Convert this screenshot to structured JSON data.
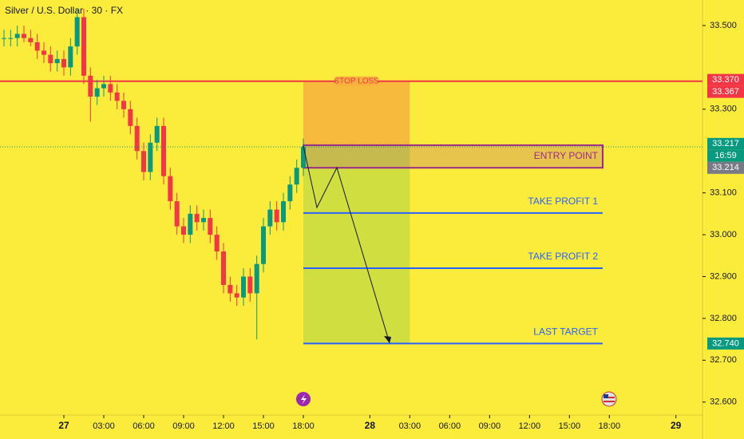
{
  "chart_data": {
    "type": "candlestick",
    "title": "Silver / U.S. Dollar · 30 · FX",
    "background": "#fbec3c",
    "up_color": "#089981",
    "down_color": "#f23645",
    "x": [
      -4.5,
      -4,
      -3.5,
      -3,
      -2.5,
      -2,
      -1.5,
      -1,
      -0.5,
      0,
      0.5,
      1,
      1.5,
      2,
      2.5,
      3,
      3.5,
      4,
      4.5,
      5,
      5.5,
      6,
      6.5,
      7,
      7.5,
      8,
      8.5,
      9,
      9.5,
      10,
      10.5,
      11,
      11.5,
      12,
      12.5,
      13,
      13.5,
      14,
      14.5,
      15,
      15.5,
      16,
      16.5,
      17,
      17.5,
      18
    ],
    "open": [
      33.47,
      33.47,
      33.47,
      33.48,
      33.47,
      33.46,
      33.44,
      33.43,
      33.41,
      33.42,
      33.4,
      33.45,
      33.52,
      33.38,
      33.33,
      33.35,
      33.36,
      33.34,
      33.32,
      33.3,
      33.26,
      33.2,
      33.15,
      33.22,
      33.26,
      33.14,
      33.08,
      33.02,
      33.0,
      33.05,
      33.03,
      33.04,
      33.0,
      32.96,
      32.88,
      32.86,
      32.85,
      32.9,
      32.86,
      32.93,
      33.02,
      33.06,
      33.03,
      33.08,
      33.12,
      33.16
    ],
    "high": [
      33.49,
      33.49,
      33.5,
      33.5,
      33.49,
      33.48,
      33.46,
      33.45,
      33.44,
      33.44,
      33.47,
      33.54,
      33.54,
      33.4,
      33.37,
      33.38,
      33.38,
      33.36,
      33.34,
      33.32,
      33.28,
      33.22,
      33.24,
      33.28,
      33.28,
      33.16,
      33.1,
      33.04,
      33.07,
      33.07,
      33.06,
      33.06,
      33.02,
      32.98,
      32.9,
      32.88,
      32.92,
      32.92,
      32.95,
      33.04,
      33.08,
      33.08,
      33.1,
      33.14,
      33.18,
      33.23
    ],
    "low": [
      33.45,
      33.45,
      33.45,
      33.46,
      33.45,
      33.42,
      33.41,
      33.39,
      33.39,
      33.38,
      33.38,
      33.43,
      33.36,
      33.27,
      33.31,
      33.33,
      33.32,
      33.3,
      33.28,
      33.24,
      33.18,
      33.13,
      33.13,
      33.2,
      33.12,
      33.06,
      33.0,
      32.98,
      32.98,
      33.01,
      33.01,
      32.98,
      32.94,
      32.86,
      32.84,
      32.83,
      32.83,
      32.84,
      32.75,
      32.91,
      33.0,
      33.01,
      33.01,
      33.06,
      33.1,
      33.14
    ],
    "close": [
      33.47,
      33.47,
      33.48,
      33.47,
      33.46,
      33.44,
      33.43,
      33.41,
      33.42,
      33.4,
      33.45,
      33.52,
      33.38,
      33.33,
      33.35,
      33.36,
      33.34,
      33.32,
      33.3,
      33.26,
      33.2,
      33.15,
      33.22,
      33.26,
      33.14,
      33.08,
      33.02,
      33.0,
      33.05,
      33.03,
      33.04,
      33.0,
      32.96,
      32.88,
      32.86,
      32.85,
      32.9,
      32.86,
      32.93,
      33.02,
      33.06,
      33.03,
      33.08,
      33.12,
      33.16,
      33.21
    ],
    "xlim": [
      -4.8,
      48
    ],
    "xticks": [
      {
        "value": 0,
        "label": "27"
      },
      {
        "value": 3,
        "label": "03:00"
      },
      {
        "value": 6,
        "label": "06:00"
      },
      {
        "value": 9,
        "label": "09:00"
      },
      {
        "value": 12,
        "label": "12:00"
      },
      {
        "value": 15,
        "label": "15:00"
      },
      {
        "value": 18,
        "label": "18:00"
      },
      {
        "value": 23,
        "label": "28"
      },
      {
        "value": 26,
        "label": "03:00"
      },
      {
        "value": 29,
        "label": "06:00"
      },
      {
        "value": 32,
        "label": "09:00"
      },
      {
        "value": 35,
        "label": "12:00"
      },
      {
        "value": 38,
        "label": "15:00"
      },
      {
        "value": 41,
        "label": "18:00"
      },
      {
        "value": 46,
        "label": "29"
      }
    ],
    "ylim": [
      32.569,
      33.561
    ],
    "yticks": [
      {
        "value": 33.5,
        "label": "33.500"
      },
      {
        "value": 33.3,
        "label": "33.300"
      },
      {
        "value": 33.1,
        "label": "33.100"
      },
      {
        "value": 33.0,
        "label": "33.000"
      },
      {
        "value": 32.9,
        "label": "32.900"
      },
      {
        "value": 32.8,
        "label": "32.800"
      },
      {
        "value": 32.7,
        "label": "32.700"
      },
      {
        "value": 32.6,
        "label": "32.600"
      }
    ],
    "stop_loss": {
      "label": "STOP LOSS",
      "value": 33.367,
      "color": "#f23645"
    },
    "risk_zone": {
      "x": [
        18,
        26
      ],
      "range": [
        33.214,
        33.367
      ],
      "color": "#f7b13c"
    },
    "reward_zone": {
      "x": [
        18,
        26
      ],
      "range": [
        32.74,
        33.214
      ],
      "color": "#c9dc3f"
    },
    "entry": {
      "label": "ENTRY POINT",
      "x": [
        18,
        40.5
      ],
      "range": [
        33.16,
        33.214
      ],
      "color": "#9c2a8a"
    },
    "targets": [
      {
        "label": "TAKE PROFIT 1",
        "value": 33.052,
        "x": [
          18,
          40.5
        ]
      },
      {
        "label": "TAKE PROFIT 2",
        "value": 32.92,
        "x": [
          18,
          40.5
        ]
      },
      {
        "label": "LAST TARGET",
        "value": 32.74,
        "x": [
          18,
          40.5
        ]
      }
    ],
    "target_color": "#2962ff",
    "price_tags": [
      {
        "value": 33.37,
        "label": "33.370",
        "color": "#f23645"
      },
      {
        "value": 33.367,
        "label": "33.367",
        "color": "#f23645"
      },
      {
        "value": 33.217,
        "label": "33.217",
        "color": "#089981"
      },
      {
        "value": 33.214,
        "label": "33.214",
        "color": "#787b86"
      },
      {
        "value": 32.74,
        "label": "32.740",
        "color": "#089981"
      }
    ],
    "countdown": "16:59"
  }
}
